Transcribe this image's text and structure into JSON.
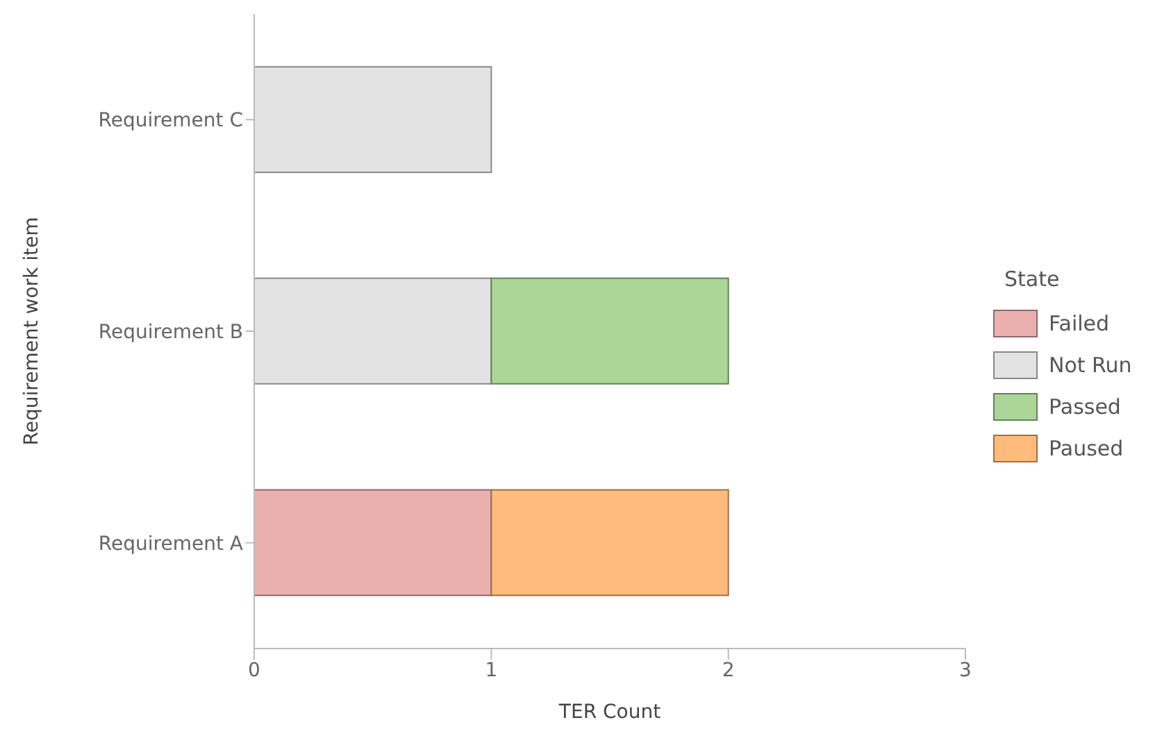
{
  "chart_data": {
    "type": "bar",
    "orientation": "horizontal",
    "stacked": true,
    "xlabel": "TER Count",
    "ylabel": "Requirement work item",
    "legend_title": "State",
    "legend": "right",
    "grid": false,
    "categories": [
      "Requirement C",
      "Requirement B",
      "Requirement A"
    ],
    "series": [
      {
        "name": "Failed",
        "color": "#eab0b0",
        "values": [
          0,
          0,
          1
        ]
      },
      {
        "name": "Not Run",
        "color": "#e3e3e3",
        "values": [
          1,
          1,
          0
        ]
      },
      {
        "name": "Passed",
        "color": "#acd698",
        "values": [
          0,
          1,
          0
        ]
      },
      {
        "name": "Paused",
        "color": "#ffbb7c",
        "values": [
          0,
          0,
          1
        ]
      }
    ],
    "xlim": [
      0,
      3
    ],
    "xticks": [
      0,
      1,
      2,
      3
    ]
  }
}
